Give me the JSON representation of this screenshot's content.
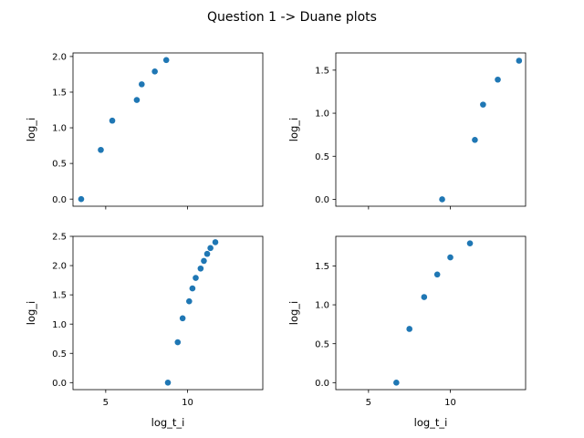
{
  "figure": {
    "title": "Question 1 -> Duane plots",
    "point_color": "#1f77b4"
  },
  "chart_data": [
    {
      "type": "scatter",
      "panel": "top-left",
      "xlabel": "",
      "ylabel": "log_i",
      "xlim": [
        3,
        14.6
      ],
      "ylim": [
        -0.1,
        2.05
      ],
      "xticks": [],
      "yticks": [
        "0.0",
        "0.5",
        "1.0",
        "1.5",
        "2.0"
      ],
      "ytick_values": [
        0,
        0.5,
        1.0,
        1.5,
        2.0
      ],
      "x": [
        3.5,
        4.7,
        5.4,
        6.9,
        7.2,
        8.0,
        8.7
      ],
      "y": [
        0.0,
        0.69,
        1.1,
        1.39,
        1.61,
        1.79,
        1.95
      ]
    },
    {
      "type": "scatter",
      "panel": "top-right",
      "xlabel": "",
      "ylabel": "log_i",
      "xlim": [
        3,
        14.6
      ],
      "ylim": [
        -0.08,
        1.7
      ],
      "xticks": [],
      "yticks": [
        "0.0",
        "0.5",
        "1.0",
        "1.5"
      ],
      "ytick_values": [
        0,
        0.5,
        1.0,
        1.5
      ],
      "x": [
        9.5,
        11.5,
        12.0,
        12.9,
        14.2
      ],
      "y": [
        0.0,
        0.69,
        1.1,
        1.39,
        1.61
      ]
    },
    {
      "type": "scatter",
      "panel": "bottom-left",
      "xlabel": "log_t_i",
      "ylabel": "log_i",
      "xlim": [
        3,
        14.6
      ],
      "ylim": [
        -0.12,
        2.5
      ],
      "xticks": [
        "5",
        "10"
      ],
      "xtick_values": [
        5,
        10
      ],
      "yticks": [
        "0.0",
        "0.5",
        "1.0",
        "1.5",
        "2.0",
        "2.5"
      ],
      "ytick_values": [
        0,
        0.5,
        1.0,
        1.5,
        2.0,
        2.5
      ],
      "x": [
        8.8,
        9.4,
        9.7,
        10.1,
        10.3,
        10.5,
        10.8,
        11.0,
        11.2,
        11.4,
        11.7
      ],
      "y": [
        0.0,
        0.69,
        1.1,
        1.39,
        1.61,
        1.79,
        1.95,
        2.08,
        2.2,
        2.3,
        2.4
      ]
    },
    {
      "type": "scatter",
      "panel": "bottom-right",
      "xlabel": "log_t_i",
      "ylabel": "log_i",
      "xlim": [
        3,
        14.6
      ],
      "ylim": [
        -0.09,
        1.88
      ],
      "xticks": [
        "5",
        "10"
      ],
      "xtick_values": [
        5,
        10
      ],
      "yticks": [
        "0.0",
        "0.5",
        "1.0",
        "1.5"
      ],
      "ytick_values": [
        0,
        0.5,
        1.0,
        1.5
      ],
      "x": [
        6.7,
        7.5,
        8.4,
        9.2,
        10.0,
        11.2
      ],
      "y": [
        0.0,
        0.69,
        1.1,
        1.39,
        1.61,
        1.79
      ]
    }
  ]
}
